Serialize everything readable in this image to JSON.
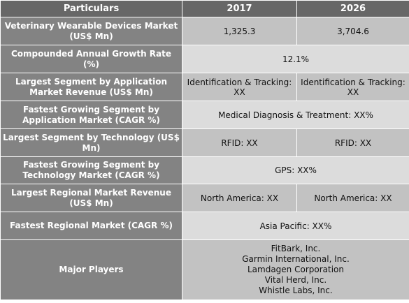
{
  "header": {
    "col_particulars": "Particulars",
    "col_2017": "2017",
    "col_2026": "2026"
  },
  "rows": {
    "market": {
      "label": "Veterinary Wearable Devices Market (US$ Mn)",
      "v2017": "1,325.3",
      "v2026": "3,704.6"
    },
    "cagr": {
      "label": "Compounded Annual Growth Rate (%)",
      "value": "12.1%"
    },
    "largest_app": {
      "label": "Largest Segment by Application Market Revenue (US$ Mn)",
      "v2017": "Identification & Tracking: XX",
      "v2026": "Identification & Tracking: XX"
    },
    "fastest_app": {
      "label": "Fastest Growing Segment by Application Market (CAGR %)",
      "value": "Medical Diagnosis & Treatment:  XX%"
    },
    "largest_tech": {
      "label": "Largest Segment by Technology (US$ Mn)",
      "v2017": "RFID:  XX",
      "v2026": "RFID:  XX"
    },
    "fastest_tech": {
      "label": "Fastest Growing Segment by Technology Market (CAGR %)",
      "value": "GPS:  XX%"
    },
    "largest_region": {
      "label": "Largest Regional Market Revenue (US$ Mn)",
      "v2017": "North America: XX",
      "v2026": "North America: XX"
    },
    "fastest_region": {
      "label": "Fastest Regional Market (CAGR %)",
      "value": "Asia Pacific:  XX%"
    },
    "players": {
      "label": "Major Players",
      "list": [
        "FitBark, Inc.",
        "Garmin International, Inc.",
        "Lamdagen Corporation",
        "Vital Herd, Inc.",
        "Whistle Labs, Inc."
      ]
    }
  }
}
